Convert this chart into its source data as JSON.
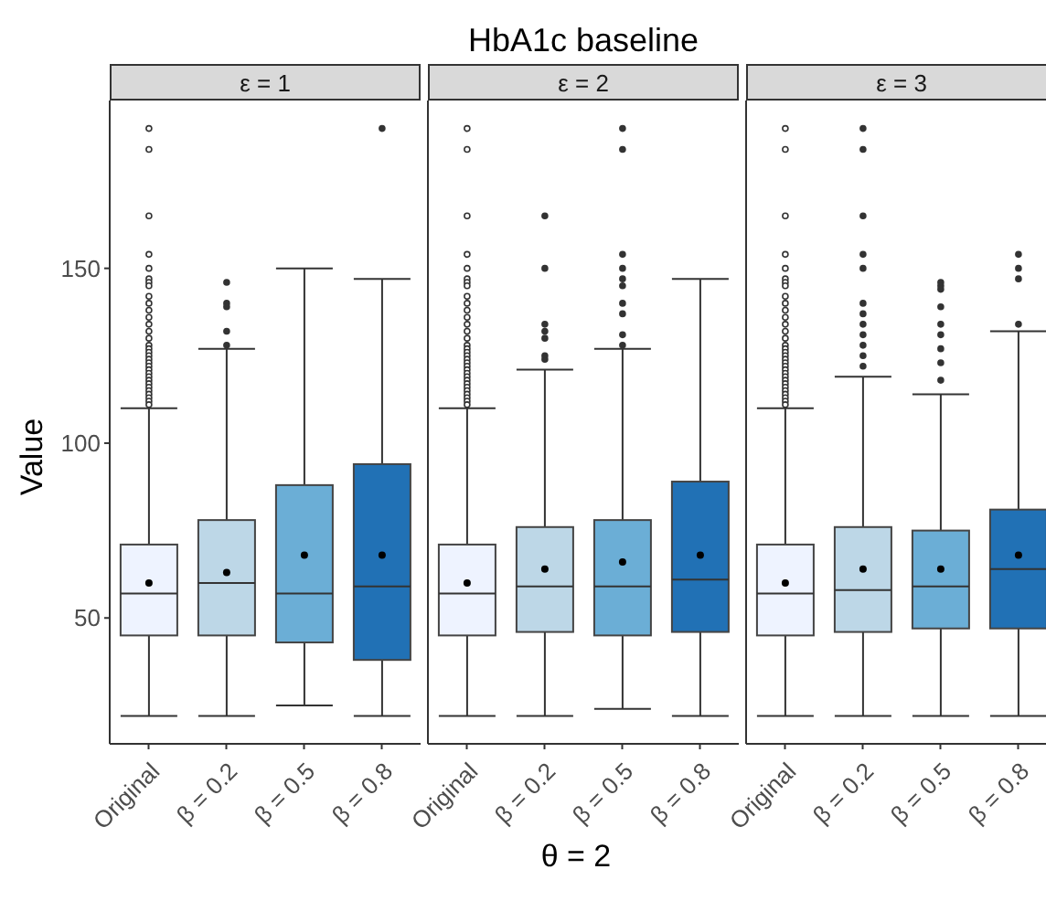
{
  "chart_data": [
    {
      "type": "box",
      "subtitle": "ε = 1",
      "ylabel": "Value",
      "categories": [
        "Original",
        "β = 0.2",
        "β = 0.5",
        "β = 0.8"
      ],
      "colors": [
        "#eef3ff",
        "#bdd7e7",
        "#6baed6",
        "#2171b5"
      ],
      "ylim": [
        14,
        198
      ],
      "yticks": [
        50,
        100,
        150
      ],
      "grid": false,
      "legend": false,
      "boxes": [
        {
          "low": 22,
          "q1": 45,
          "median": 57,
          "q3": 71,
          "high": 110,
          "mean": 60,
          "outliers": [
            190,
            184,
            165,
            154,
            150,
            147,
            146,
            145,
            142,
            140,
            138,
            136,
            134,
            132,
            130,
            128,
            127,
            126,
            125,
            124,
            123,
            122,
            121,
            120,
            119,
            118,
            117,
            116,
            115,
            114,
            113,
            112,
            111
          ]
        },
        {
          "low": 22,
          "q1": 45,
          "median": 60,
          "q3": 78,
          "high": 127,
          "mean": 63,
          "outliers": [
            146,
            140,
            139,
            132,
            128
          ]
        },
        {
          "low": 25,
          "q1": 43,
          "median": 57,
          "q3": 88,
          "high": 150,
          "mean": 68
        },
        {
          "low": 22,
          "q1": 38,
          "median": 59,
          "q3": 94,
          "high": 147,
          "mean": 68,
          "outliers": [
            190
          ]
        }
      ]
    },
    {
      "type": "box",
      "title": "HbA1c baseline",
      "subtitle": "ε = 2",
      "xlabel": "θ = 2",
      "categories": [
        "Original",
        "β = 0.2",
        "β = 0.5",
        "β = 0.8"
      ],
      "colors": [
        "#eef3ff",
        "#bdd7e7",
        "#6baed6",
        "#2171b5"
      ],
      "ylim": [
        14,
        198
      ],
      "tick_labels": "x",
      "grid": false,
      "legend": false,
      "boxes": [
        {
          "low": 22,
          "q1": 45,
          "median": 57,
          "q3": 71,
          "high": 110,
          "mean": 60,
          "outliers": [
            190,
            184,
            165,
            154,
            150,
            147,
            146,
            145,
            142,
            140,
            138,
            136,
            134,
            132,
            130,
            128,
            127,
            126,
            125,
            124,
            123,
            122,
            121,
            120,
            119,
            118,
            117,
            116,
            115,
            114,
            113,
            112,
            111
          ]
        },
        {
          "low": 22,
          "q1": 46,
          "median": 59,
          "q3": 76,
          "high": 121,
          "mean": 64,
          "outliers": [
            165,
            150,
            134,
            132,
            130,
            125,
            124
          ]
        },
        {
          "low": 24,
          "q1": 45,
          "median": 59,
          "q3": 78,
          "high": 127,
          "mean": 66,
          "outliers": [
            190,
            184,
            154,
            150,
            147,
            145,
            140,
            137,
            131,
            128
          ]
        },
        {
          "low": 22,
          "q1": 46,
          "median": 61,
          "q3": 89,
          "high": 147,
          "mean": 68
        }
      ]
    },
    {
      "type": "box",
      "subtitle": "ε = 3",
      "categories": [
        "Original",
        "β = 0.2",
        "β = 0.5",
        "β = 0.8"
      ],
      "colors": [
        "#eef3ff",
        "#bdd7e7",
        "#6baed6",
        "#2171b5"
      ],
      "ylim": [
        14,
        198
      ],
      "tick_labels": "x",
      "grid": false,
      "legend": false,
      "boxes": [
        {
          "low": 22,
          "q1": 45,
          "median": 57,
          "q3": 71,
          "high": 110,
          "mean": 60,
          "outliers": [
            190,
            184,
            165,
            154,
            150,
            147,
            146,
            145,
            142,
            140,
            138,
            136,
            134,
            132,
            130,
            128,
            127,
            126,
            125,
            124,
            123,
            122,
            121,
            120,
            119,
            118,
            117,
            116,
            115,
            114,
            113,
            112,
            111
          ]
        },
        {
          "low": 22,
          "q1": 46,
          "median": 58,
          "q3": 76,
          "high": 119,
          "mean": 64,
          "outliers": [
            190,
            184,
            165,
            154,
            150,
            140,
            137,
            134,
            131,
            128,
            125,
            122
          ]
        },
        {
          "low": 22,
          "q1": 47,
          "median": 59,
          "q3": 75,
          "high": 114,
          "mean": 64,
          "outliers": [
            146,
            145,
            144,
            139,
            134,
            131,
            127,
            123,
            118
          ]
        },
        {
          "low": 22,
          "q1": 47,
          "median": 64,
          "q3": 81,
          "high": 132,
          "mean": 68,
          "outliers": [
            154,
            150,
            147,
            134
          ]
        }
      ]
    }
  ]
}
